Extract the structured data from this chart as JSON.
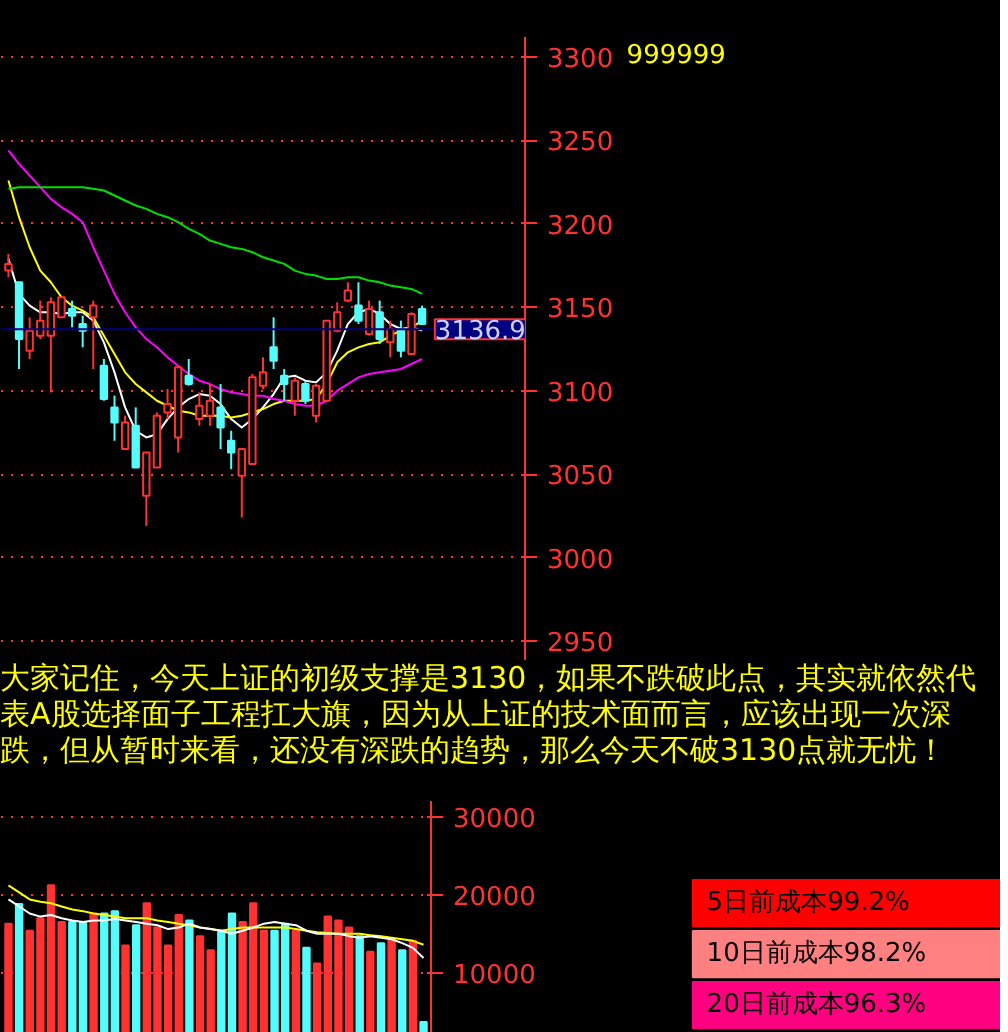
{
  "chart_data": [
    {
      "type": "candlestick",
      "categories": [
        null,
        null,
        null,
        null,
        null,
        null,
        null,
        null,
        null,
        null,
        null,
        null,
        null,
        null,
        null,
        null,
        null,
        null,
        null,
        null,
        null,
        null,
        null,
        null,
        null,
        null,
        null,
        null,
        null,
        null,
        null,
        null,
        null,
        null,
        null,
        null,
        null,
        null,
        null,
        null
      ],
      "ohlc": [
        [
          3172,
          3182,
          3168,
          3176
        ],
        [
          3165,
          3165,
          3113,
          3131
        ],
        [
          3124,
          3144,
          3119,
          3136
        ],
        [
          3133,
          3154,
          3131,
          3142
        ],
        [
          3133,
          3156,
          3099,
          3153
        ],
        [
          3144,
          3156,
          3144,
          3156
        ],
        [
          3149,
          3154,
          3138,
          3145
        ],
        [
          3140,
          3145,
          3126,
          3136
        ],
        [
          3144,
          3154,
          3113,
          3151
        ],
        [
          3115,
          3119,
          3094,
          3095
        ],
        [
          3090,
          3097,
          3070,
          3081
        ],
        [
          3065,
          3085,
          3065,
          3081
        ],
        [
          3079,
          3090,
          3054,
          3054
        ],
        [
          3037,
          3063,
          3019,
          3063
        ],
        [
          3054,
          3087,
          3054,
          3085
        ],
        [
          3087,
          3101,
          3083,
          3092
        ],
        [
          3072,
          3115,
          3063,
          3114
        ],
        [
          3109,
          3119,
          3103,
          3104
        ],
        [
          3083,
          3099,
          3079,
          3091
        ],
        [
          3085,
          3104,
          3079,
          3094
        ],
        [
          3090,
          3104,
          3065,
          3078
        ],
        [
          3070,
          3076,
          3053,
          3063
        ],
        [
          3049,
          3065,
          3024,
          3065
        ],
        [
          3056,
          3110,
          3056,
          3108
        ],
        [
          3103,
          3120,
          3101,
          3111
        ],
        [
          3126,
          3144,
          3113,
          3118
        ],
        [
          3109,
          3113,
          3094,
          3104
        ],
        [
          3094,
          3108,
          3085,
          3106
        ],
        [
          3104,
          3106,
          3092,
          3094
        ],
        [
          3085,
          3104,
          3081,
          3103
        ],
        [
          3094,
          3142,
          3094,
          3142
        ],
        [
          3136,
          3153,
          3135,
          3147
        ],
        [
          3154,
          3165,
          3153,
          3160
        ],
        [
          3151,
          3165,
          3140,
          3142
        ],
        [
          3134,
          3154,
          3133,
          3149
        ],
        [
          3147,
          3154,
          3128,
          3131
        ],
        [
          3129,
          3142,
          3120,
          3137
        ],
        [
          3137,
          3142,
          3120,
          3124
        ],
        [
          3122,
          3147,
          3122,
          3146
        ],
        [
          3149,
          3151,
          3140,
          3140
        ]
      ],
      "colors": [
        "#ff3232",
        "#54fcfc",
        "#ff3232",
        "#ff3232",
        "#ff3232",
        "#ff3232",
        "#54fcfc",
        "#54fcfc",
        "#ff3232",
        "#54fcfc",
        "#54fcfc",
        "#ff3232",
        "#54fcfc",
        "#ff3232",
        "#ff3232",
        "#ff3232",
        "#ff3232",
        "#54fcfc",
        "#ff3232",
        "#ff3232",
        "#54fcfc",
        "#54fcfc",
        "#ff3232",
        "#ff3232",
        "#ff3232",
        "#54fcfc",
        "#54fcfc",
        "#ff3232",
        "#54fcfc",
        "#ff3232",
        "#ff3232",
        "#ff3232",
        "#ff3232",
        "#54fcfc",
        "#ff3232",
        "#54fcfc",
        "#ff3232",
        "#54fcfc",
        "#ff3232",
        "#54fcfc"
      ],
      "series": [
        {
          "type": "line",
          "color": "#ffffff",
          "values": [
            3179,
            3158,
            3151,
            3147,
            3147,
            3146,
            3147,
            3147,
            3142,
            3129,
            3111,
            3090,
            3076,
            3072,
            3074,
            3083,
            3090,
            3095,
            3098,
            3097,
            3092,
            3083,
            3078,
            3083,
            3090,
            3098,
            3108,
            3109,
            3106,
            3105,
            3111,
            3124,
            3140,
            3147,
            3149,
            3146,
            3140,
            3137,
            3138,
            3136
          ]
        },
        {
          "type": "line",
          "color": "#ffff00",
          "values": [
            3226,
            3204,
            3186,
            3172,
            3165,
            3156,
            3151,
            3148,
            3144,
            3133,
            3122,
            3111,
            3104,
            3099,
            3094,
            3091,
            3088,
            3087,
            3085,
            3085,
            3085,
            3084,
            3085,
            3087,
            3089,
            3092,
            3094,
            3094,
            3094,
            3095,
            3104,
            3117,
            3123,
            3126,
            3128,
            3129,
            3133,
            3136,
            3138,
            3142
          ]
        },
        {
          "type": "line",
          "color": "#ff00ff",
          "values": [
            3244,
            3236,
            3229,
            3222,
            3215,
            3210,
            3206,
            3201,
            3186,
            3172,
            3158,
            3147,
            3138,
            3131,
            3126,
            3120,
            3115,
            3110,
            3106,
            3104,
            3101,
            3099,
            3098,
            3097,
            3097,
            3095,
            3094,
            3092,
            3091,
            3091,
            3094,
            3100,
            3104,
            3108,
            3110,
            3111,
            3112,
            3113,
            3116,
            3119
          ]
        },
        {
          "type": "line",
          "color": "#00e000",
          "values": [
            3221,
            3222,
            3222,
            3222,
            3222,
            3222,
            3222,
            3222,
            3221,
            3220,
            3217,
            3214,
            3211,
            3209,
            3206,
            3204,
            3201,
            3197,
            3194,
            3190,
            3188,
            3186,
            3185,
            3183,
            3180,
            3178,
            3176,
            3172,
            3170,
            3169,
            3167,
            3167,
            3168,
            3168,
            3166,
            3165,
            3163,
            3162,
            3161,
            3158
          ]
        }
      ],
      "ylim": [
        2938,
        3312
      ],
      "yticks": [
        2950,
        3000,
        3050,
        3100,
        3150,
        3200,
        3250,
        3300
      ],
      "grid": "y",
      "tick_labels": "y",
      "ref_lines": [
        {
          "axis": "y",
          "value": 3136.9,
          "label": "3136.9",
          "color": "#000080"
        }
      ],
      "annotations": [
        "大家记住，今天上证的初级支撑是3130，如果不跌破此点，其实就依然代表A股选择面子工程扛大旗，因为从上证的技术面而言，应该出现一次深跌，但从暂时来看，还没有深跌的趋势，那么今天不破3130点就无忧！"
      ]
    },
    {
      "type": "other",
      "title": "999999",
      "annotations": [
        "5日前成本99.2%",
        "10日前成本98.2%",
        "20日前成本96.3%"
      ],
      "colors": [
        "#ff0000",
        "#ff8080",
        "#ff0080"
      ]
    },
    {
      "type": "bar",
      "categories": [
        null,
        null,
        null,
        null,
        null,
        null,
        null,
        null,
        null,
        null,
        null,
        null,
        null,
        null,
        null,
        null,
        null,
        null,
        null,
        null,
        null,
        null,
        null,
        null,
        null,
        null,
        null,
        null,
        null,
        null,
        null,
        null,
        null,
        null,
        null,
        null,
        null,
        null,
        null,
        null
      ],
      "series": [
        {
          "type": "bar",
          "values": [
            16300,
            18800,
            15400,
            17000,
            21200,
            16500,
            16500,
            16500,
            17600,
            17600,
            17900,
            13500,
            16100,
            18900,
            15800,
            13500,
            17400,
            16700,
            14700,
            12900,
            15400,
            17600,
            16500,
            18900,
            15400,
            15400,
            16300,
            15400,
            13200,
            11200,
            17200,
            16700,
            15800,
            14700,
            12700,
            13800,
            14300,
            12900,
            14100,
            3700
          ],
          "colors": [
            "#ff3232",
            "#54fcfc",
            "#ff3232",
            "#ff3232",
            "#ff3232",
            "#ff3232",
            "#54fcfc",
            "#54fcfc",
            "#ff3232",
            "#54fcfc",
            "#54fcfc",
            "#ff3232",
            "#54fcfc",
            "#ff3232",
            "#ff3232",
            "#ff3232",
            "#ff3232",
            "#54fcfc",
            "#ff3232",
            "#ff3232",
            "#54fcfc",
            "#54fcfc",
            "#ff3232",
            "#ff3232",
            "#ff3232",
            "#54fcfc",
            "#54fcfc",
            "#ff3232",
            "#54fcfc",
            "#ff3232",
            "#ff3232",
            "#ff3232",
            "#ff3232",
            "#54fcfc",
            "#ff3232",
            "#54fcfc",
            "#ff3232",
            "#54fcfc",
            "#ff3232",
            "#54fcfc"
          ]
        },
        {
          "type": "line",
          "color": "#ffff00",
          "values": [
            21200,
            20300,
            19400,
            19100,
            18900,
            18500,
            18100,
            17900,
            17600,
            17400,
            17200,
            17000,
            17000,
            17000,
            16700,
            16500,
            16300,
            16100,
            15800,
            15600,
            15400,
            15600,
            15800,
            15800,
            15800,
            15800,
            15800,
            15600,
            15400,
            15200,
            15100,
            15000,
            15000,
            15000,
            14800,
            14700,
            14500,
            14300,
            14100,
            13600
          ]
        },
        {
          "type": "line",
          "color": "#ffffff",
          "values": [
            19400,
            18500,
            17600,
            17200,
            17400,
            17000,
            16700,
            16500,
            16700,
            16700,
            16900,
            16700,
            16500,
            16300,
            16100,
            15600,
            15800,
            16300,
            15800,
            15600,
            15400,
            15000,
            15400,
            15800,
            16300,
            16500,
            16300,
            16100,
            15400,
            15000,
            15000,
            15000,
            14700,
            14500,
            14700,
            14500,
            14300,
            13800,
            13200,
            11900
          ]
        }
      ],
      "ylim": [
        2300,
        32000
      ],
      "yticks": [
        10000,
        20000,
        30000
      ],
      "grid": "y",
      "tick_labels": "y"
    }
  ]
}
